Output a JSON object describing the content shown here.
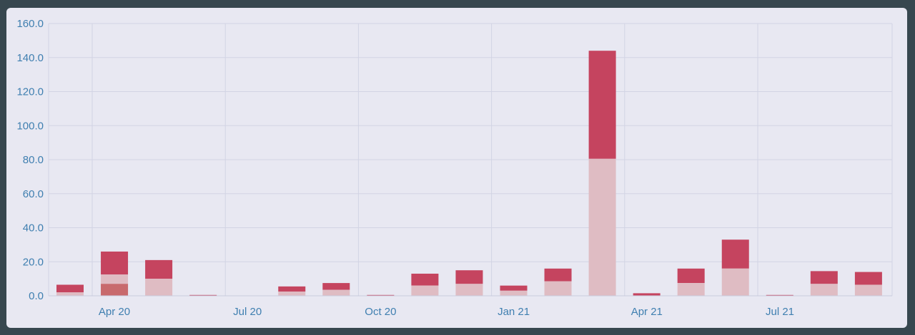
{
  "chart_data": {
    "type": "bar",
    "stacked": true,
    "x_tick_labels": [
      "Apr 20",
      "Jul 20",
      "Oct 20",
      "Jan 21",
      "Apr 21",
      "Jul 21"
    ],
    "y_tick_labels": [
      "0.0",
      "20.0",
      "40.0",
      "60.0",
      "80.0",
      "100.0",
      "120.0",
      "140.0",
      "160.0"
    ],
    "ylim": [
      0,
      160
    ],
    "grid": true,
    "legend": "none",
    "colors": {
      "top": "#c5445f",
      "bottom": "#dfbcc3",
      "accent": "#c86a6d"
    },
    "bars": [
      {
        "bottom": 2,
        "top": 4.5
      },
      {
        "bottom": 12.5,
        "top": 13.5,
        "accent": 7
      },
      {
        "bottom": 10,
        "top": 11
      },
      {
        "bottom": 0,
        "top": 0.5
      },
      {
        "bottom": 0,
        "top": 0
      },
      {
        "bottom": 2.5,
        "top": 3
      },
      {
        "bottom": 3.5,
        "top": 4
      },
      {
        "bottom": 0,
        "top": 0.5
      },
      {
        "bottom": 6,
        "top": 7
      },
      {
        "bottom": 7,
        "top": 8
      },
      {
        "bottom": 3,
        "top": 3
      },
      {
        "bottom": 8.5,
        "top": 7.5
      },
      {
        "bottom": 80.5,
        "top": 63.5
      },
      {
        "bottom": 0,
        "top": 1.5
      },
      {
        "bottom": 7.5,
        "top": 8.5
      },
      {
        "bottom": 16,
        "top": 17
      },
      {
        "bottom": 0,
        "top": 0.5
      },
      {
        "bottom": 7,
        "top": 7.5
      },
      {
        "bottom": 6.5,
        "top": 7.5
      }
    ]
  }
}
